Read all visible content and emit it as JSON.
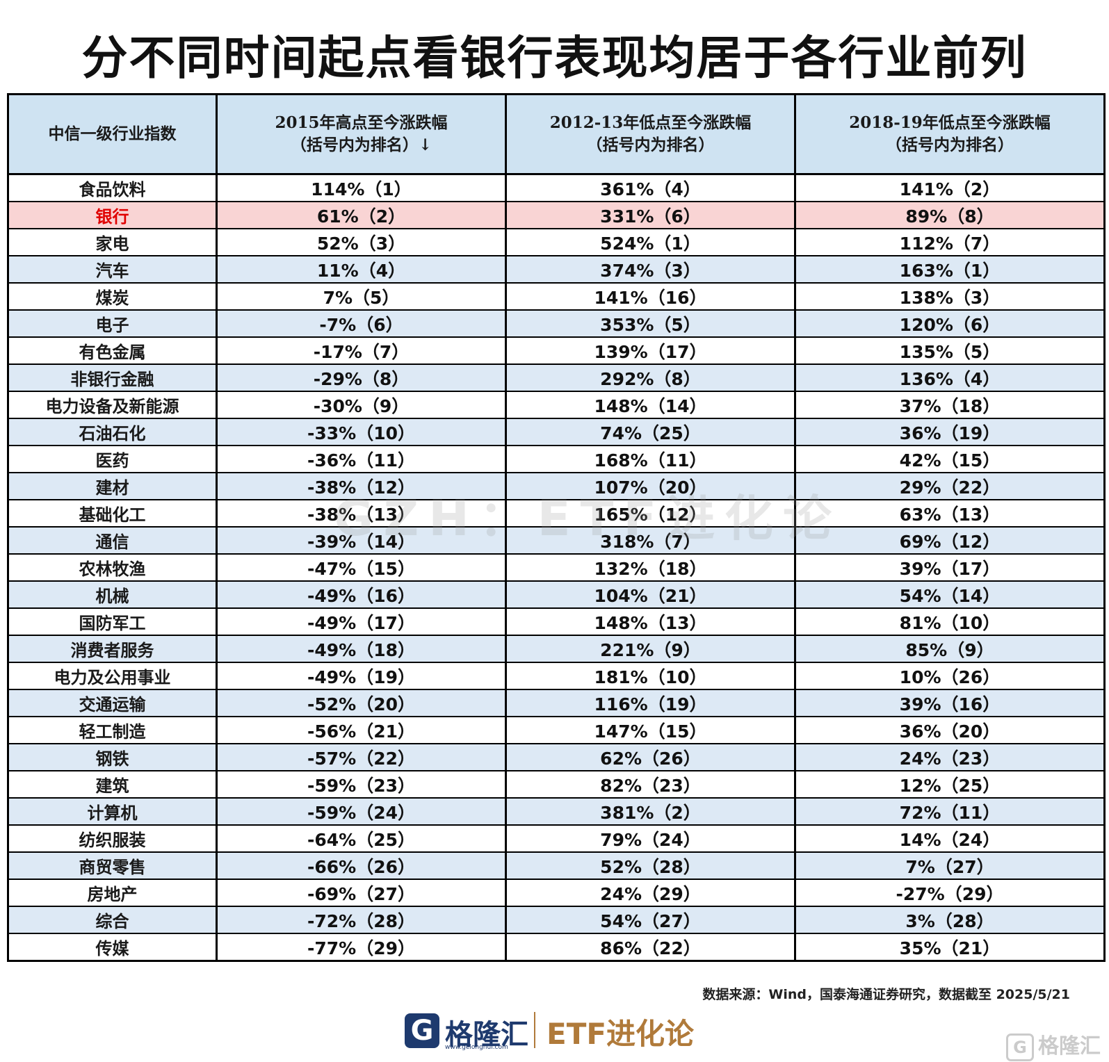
{
  "title": "分不同时间起点看银行表现均居于各行业前列",
  "chart_data": {
    "type": "table",
    "columns": [
      {
        "line1": "中信一级行业指数",
        "line2": ""
      },
      {
        "line1": "2015年高点至今涨跌幅",
        "line2": "（括号内为排名）↓"
      },
      {
        "line1": "2012-13年低点至今涨跌幅",
        "line2": "（括号内为排名）"
      },
      {
        "line1": "2018-19年低点至今涨跌幅",
        "line2": "（括号内为排名）"
      }
    ],
    "highlight_row": "银行",
    "rows": [
      [
        "食品饮料",
        "114%（1）",
        "361%（4）",
        "141%（2）"
      ],
      [
        "银行",
        "61%（2）",
        "331%（6）",
        "89%（8）"
      ],
      [
        "家电",
        "52%（3）",
        "524%（1）",
        "112%（7）"
      ],
      [
        "汽车",
        "11%（4）",
        "374%（3）",
        "163%（1）"
      ],
      [
        "煤炭",
        "7%（5）",
        "141%（16）",
        "138%（3）"
      ],
      [
        "电子",
        "-7%（6）",
        "353%（5）",
        "120%（6）"
      ],
      [
        "有色金属",
        "-17%（7）",
        "139%（17）",
        "135%（5）"
      ],
      [
        "非银行金融",
        "-29%（8）",
        "292%（8）",
        "136%（4）"
      ],
      [
        "电力设备及新能源",
        "-30%（9）",
        "148%（14）",
        "37%（18）"
      ],
      [
        "石油石化",
        "-33%（10）",
        "74%（25）",
        "36%（19）"
      ],
      [
        "医药",
        "-36%（11）",
        "168%（11）",
        "42%（15）"
      ],
      [
        "建材",
        "-38%（12）",
        "107%（20）",
        "29%（22）"
      ],
      [
        "基础化工",
        "-38%（13）",
        "165%（12）",
        "63%（13）"
      ],
      [
        "通信",
        "-39%（14）",
        "318%（7）",
        "69%（12）"
      ],
      [
        "农林牧渔",
        "-47%（15）",
        "132%（18）",
        "39%（17）"
      ],
      [
        "机械",
        "-49%（16）",
        "104%（21）",
        "54%（14）"
      ],
      [
        "国防军工",
        "-49%（17）",
        "148%（13）",
        "81%（10）"
      ],
      [
        "消费者服务",
        "-49%（18）",
        "221%（9）",
        "85%（9）"
      ],
      [
        "电力及公用事业",
        "-49%（19）",
        "181%（10）",
        "10%（26）"
      ],
      [
        "交通运输",
        "-52%（20）",
        "116%（19）",
        "39%（16）"
      ],
      [
        "轻工制造",
        "-56%（21）",
        "147%（15）",
        "36%（20）"
      ],
      [
        "钢铁",
        "-57%（22）",
        "62%（26）",
        "24%（23）"
      ],
      [
        "建筑",
        "-59%（23）",
        "82%（23）",
        "12%（25）"
      ],
      [
        "计算机",
        "-59%（24）",
        "381%（2）",
        "72%（11）"
      ],
      [
        "纺织服装",
        "-64%（25）",
        "79%（24）",
        "14%（24）"
      ],
      [
        "商贸零售",
        "-66%（26）",
        "52%（28）",
        "7%（27）"
      ],
      [
        "房地产",
        "-69%（27）",
        "24%（29）",
        "-27%（29）"
      ],
      [
        "综合",
        "-72%（28）",
        "54%（27）",
        "3%（28）"
      ],
      [
        "传媒",
        "-77%（29）",
        "86%（22）",
        "35%（21）"
      ]
    ]
  },
  "watermark": "GZH：ETF进化论",
  "source": "数据来源：Wind，国泰海通证券研究，数据截至 2025/5/21",
  "footer": {
    "brand_icon": "G",
    "brand_name": "格隆汇",
    "brand_url": "www.gelonghui.com",
    "etf_brand": "ETF进化论",
    "corner_mark": "格隆汇"
  },
  "colors": {
    "header_bg": "#cfe3f2",
    "stripe_bg": "#dde9f5",
    "highlight_bg": "#f9d4d4",
    "highlight_text": "#e00000",
    "brand_blue": "#1e3a6e",
    "brand_gold": "#b07a3a"
  }
}
